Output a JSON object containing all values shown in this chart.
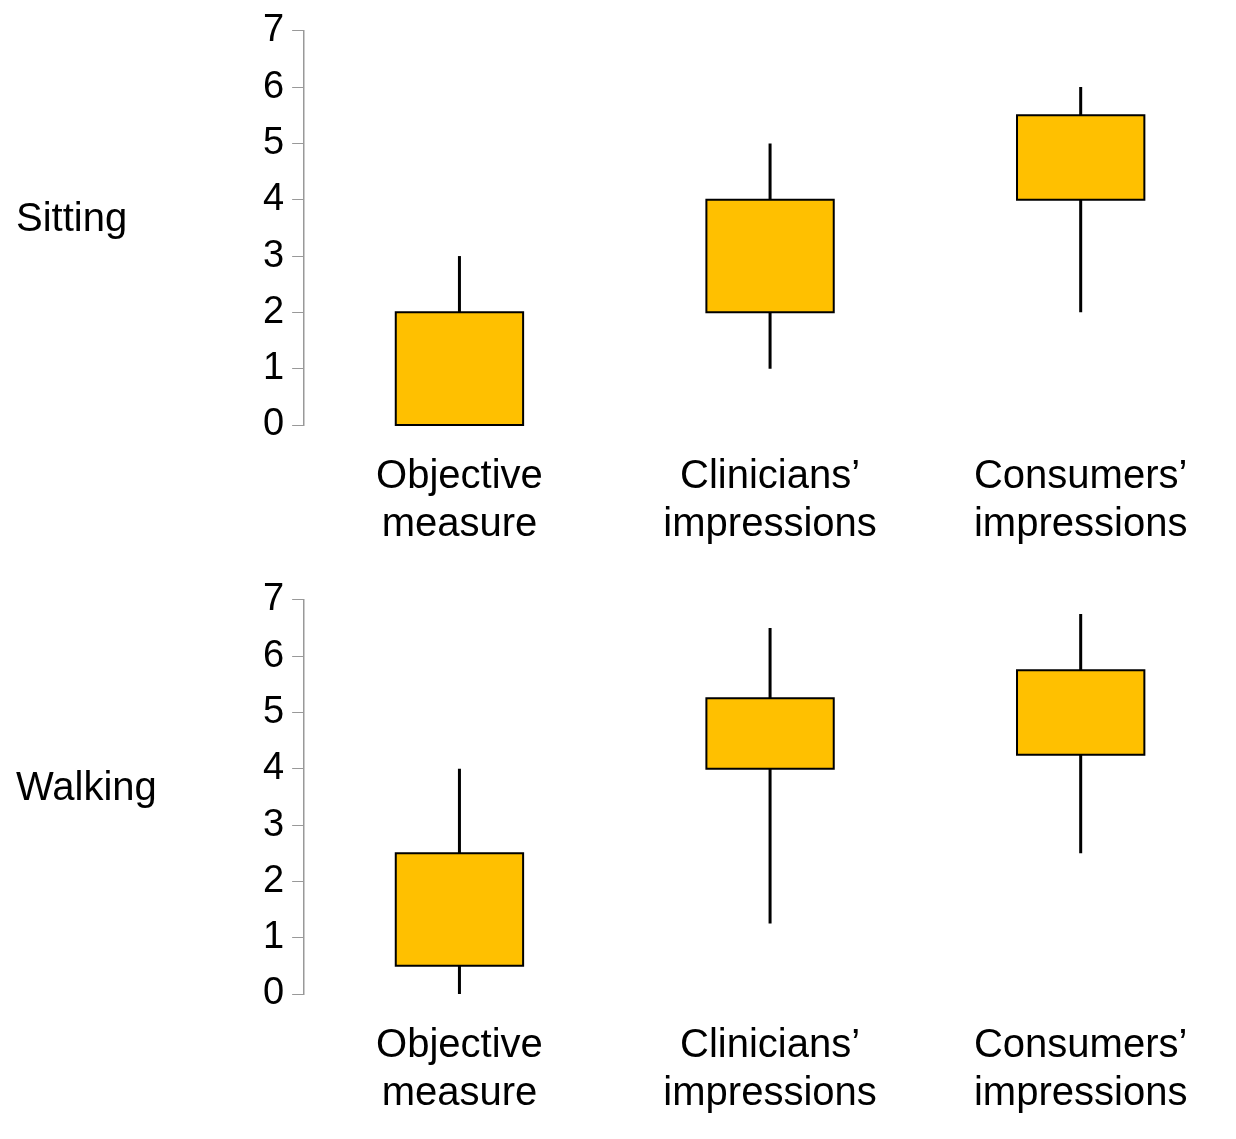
{
  "chart_data": [
    {
      "type": "candlestick",
      "ylabel": "Sitting",
      "categories": [
        "Objective measure",
        "Clinicians’ impressions",
        "Consumers’ impressions"
      ],
      "color": "#ffc000",
      "ohlc": [
        [
          0,
          3,
          0,
          2
        ],
        [
          2,
          5,
          1,
          4
        ],
        [
          4,
          6,
          2,
          5.5
        ]
      ],
      "ylim": [
        0,
        7
      ],
      "yticks": [
        0,
        1,
        2,
        3,
        4,
        5,
        6,
        7
      ]
    },
    {
      "type": "candlestick",
      "ylabel": "Walking",
      "categories": [
        "Objective measure",
        "Clinicians’ impressions",
        "Consumers’ impressions"
      ],
      "color": "#ffc000",
      "ohlc": [
        [
          0.5,
          4,
          0,
          2.5
        ],
        [
          4,
          6.5,
          1.25,
          5.25
        ],
        [
          4.25,
          6.75,
          2.5,
          5.75
        ]
      ],
      "ylim": [
        0,
        7
      ],
      "yticks": [
        0,
        1,
        2,
        3,
        4,
        5,
        6,
        7
      ]
    }
  ]
}
